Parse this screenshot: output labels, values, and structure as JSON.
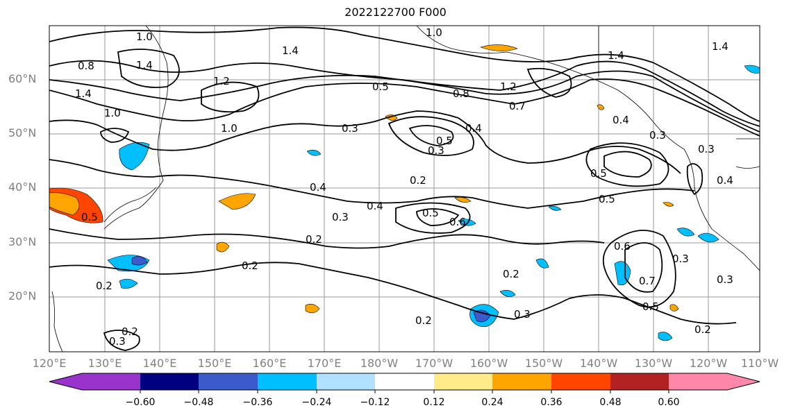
{
  "title": "2022122700 F000",
  "lat_labels": [
    "60°N",
    "50°N",
    "40°N",
    "30°N",
    "20°N"
  ],
  "lon_labels": [
    "120°E",
    "130°E",
    "140°E",
    "150°E",
    "160°E",
    "170°E",
    "180°W",
    "170°W",
    "160°W",
    "150°W",
    "140°W",
    "130°W",
    "120°W",
    "110°W"
  ],
  "colorbar": {
    "colors": [
      "#9933cc",
      "#000080",
      "#3b5bcc",
      "#00bfff",
      "#b0e2ff",
      "#ffffff",
      "#ffeb8a",
      "#ffa500",
      "#ff4500",
      "#b22222",
      "#ff88aa"
    ],
    "ticks": [
      "−0.60",
      "−0.48",
      "−0.36",
      "−0.24",
      "−0.12",
      "0.12",
      "0.24",
      "0.36",
      "0.48",
      "0.60"
    ]
  },
  "contour_labels": [
    "1.0",
    "1.4",
    "1.0",
    "1.4",
    "0.8",
    "1.4",
    "1.2",
    "1.0",
    "1.0",
    "0.5",
    "1.2",
    "0.8",
    "0.7",
    "1.4",
    "0.4",
    "0.5",
    "0.3",
    "0.5",
    "0.3",
    "0.4",
    "0.3",
    "0.5",
    "0.3",
    "0.4",
    "0.2",
    "0.4",
    "0.3",
    "0.5",
    "0.6",
    "0.4",
    "0.2",
    "0.2",
    "0.5",
    "0.6",
    "0.7",
    "0.5",
    "0.3",
    "0.3",
    "0.2",
    "0.3",
    "0.2",
    "0.2",
    "0.3",
    "0.2",
    "0.2",
    "1.4"
  ]
}
